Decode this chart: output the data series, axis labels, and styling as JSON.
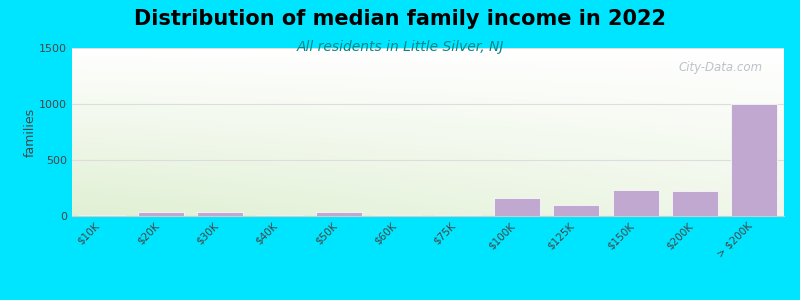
{
  "title": "Distribution of median family income in 2022",
  "subtitle": "All residents in Little Silver, NJ",
  "categories": [
    "$10K",
    "$20K",
    "$30K",
    "$40K",
    "$50K",
    "$60K",
    "$75K",
    "$100K",
    "$125K",
    "$150K",
    "$200K",
    "> $200K"
  ],
  "values": [
    10,
    35,
    35,
    10,
    40,
    10,
    10,
    165,
    95,
    230,
    220,
    1000
  ],
  "bar_color": "#c0a8d0",
  "bg_outer": "#00e5ff",
  "title_fontsize": 15,
  "subtitle_fontsize": 10,
  "subtitle_color": "#008888",
  "ylabel": "families",
  "ylim": [
    0,
    1500
  ],
  "yticks": [
    0,
    500,
    1000,
    1500
  ],
  "watermark": "City-Data.com",
  "grid_color": "#dddddd"
}
